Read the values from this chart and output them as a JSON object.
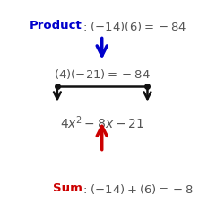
{
  "background_color": "#ffffff",
  "product_label": "Product",
  "product_equation": ": $(-14)(6) = -84$",
  "middle_equation": "$(4)(-21) = -84$",
  "trinomial": "$4x^2-8x-21$",
  "sum_label": "Sum",
  "sum_equation": ": $(-14) + (6) = -8$",
  "label_color": "#0000cc",
  "sum_label_color": "#cc0000",
  "text_color": "#555555",
  "arrow_blue": "#0000cc",
  "arrow_red": "#cc0000",
  "arrow_black": "#111111",
  "figsize": [
    2.22,
    2.27
  ],
  "dpi": 100
}
